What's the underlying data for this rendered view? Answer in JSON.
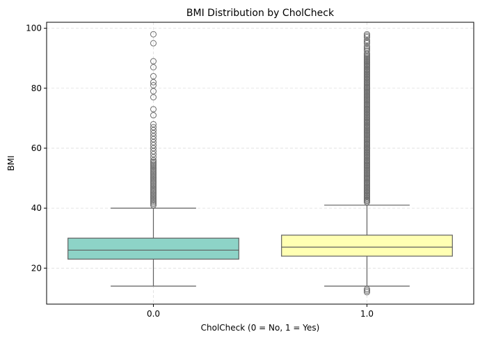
{
  "chart_data": {
    "type": "box",
    "title": "BMI Distribution by CholCheck",
    "xlabel": "CholCheck (0 = No, 1 = Yes)",
    "ylabel": "BMI",
    "ylim": [
      8,
      102
    ],
    "yticks": [
      20,
      40,
      60,
      80,
      100
    ],
    "grid": true,
    "categories": [
      "0.0",
      "1.0"
    ],
    "boxes": [
      {
        "category": "0.0",
        "color": "#8dd3c7",
        "q1": 23,
        "median": 26,
        "q3": 30,
        "whisker_low": 14,
        "whisker_high": 40,
        "outliers": [
          41,
          41.5,
          42,
          42.5,
          43,
          43.5,
          44,
          44.5,
          45,
          45.5,
          46,
          46.5,
          47,
          47.5,
          48,
          48.5,
          49,
          49.5,
          50,
          50.5,
          51,
          51.5,
          52,
          52.5,
          53,
          53.5,
          54,
          54.5,
          55,
          55.5,
          56,
          57,
          58,
          59,
          60,
          61,
          62,
          63,
          64,
          65,
          66,
          67,
          68,
          71,
          73,
          77,
          79,
          81,
          82,
          84,
          87,
          89,
          95,
          98
        ]
      },
      {
        "category": "1.0",
        "color": "#ffffb3",
        "q1": 24,
        "median": 27,
        "q3": 31,
        "whisker_low": 14,
        "whisker_high": 41,
        "outliers_low": [
          12,
          12.5,
          13
        ],
        "outliers_range": [
          42,
          92
        ],
        "outliers": [
          92.5,
          93,
          93.5,
          94,
          95,
          95.5,
          96,
          97,
          97.5,
          98
        ]
      }
    ]
  }
}
